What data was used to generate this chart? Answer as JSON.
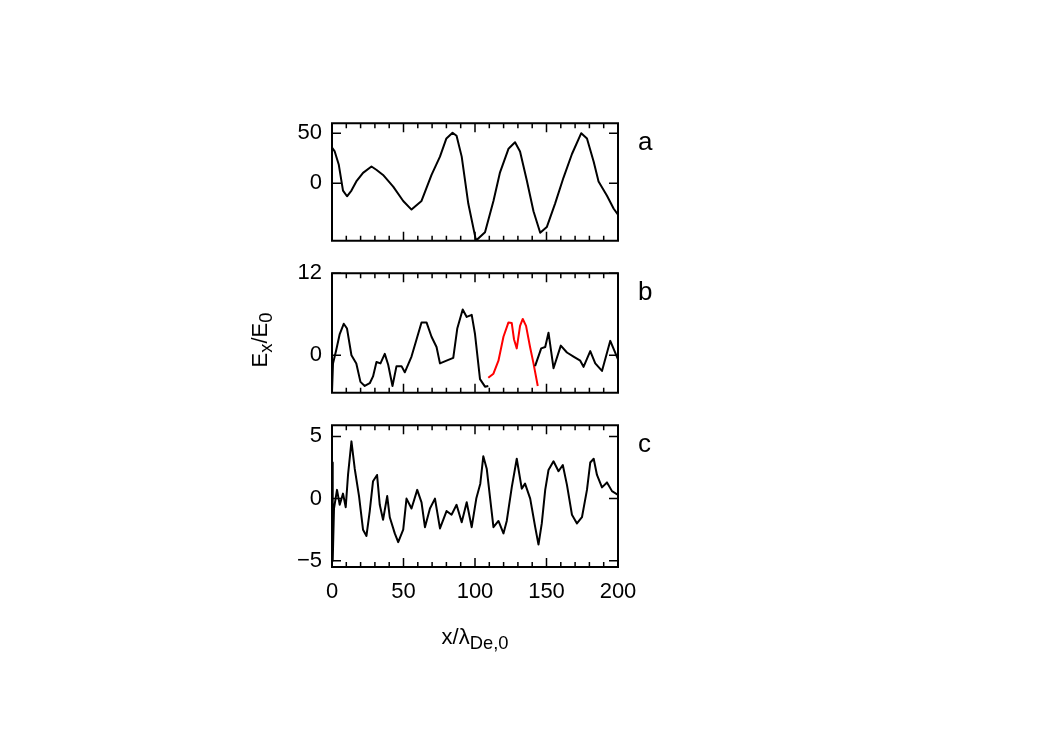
{
  "chart_data": [
    {
      "type": "line",
      "xlim": [
        0,
        200
      ],
      "xticks": [
        0,
        {
          "value": 10,
          "label": null
        },
        {
          "value": 20,
          "label": null
        },
        {
          "value": 30,
          "label": null
        },
        {
          "value": 40,
          "label": null
        },
        50,
        {
          "value": 60,
          "label": null
        },
        {
          "value": 70,
          "label": null
        },
        {
          "value": 80,
          "label": null
        },
        {
          "value": 90,
          "label": null
        },
        100,
        {
          "value": 110,
          "label": null
        },
        {
          "value": 120,
          "label": null
        },
        {
          "value": 130,
          "label": null
        },
        {
          "value": 140,
          "label": null
        },
        150,
        {
          "value": 160,
          "label": null
        },
        {
          "value": 170,
          "label": null
        },
        {
          "value": 180,
          "label": null
        },
        {
          "value": 190,
          "label": null
        },
        200
      ],
      "ylim": [
        -57.5,
        60
      ],
      "yticks": [
        0,
        50
      ],
      "tick_labels": "y",
      "marker": "none",
      "annotations": [
        "a"
      ],
      "series": [
        {
          "color": "#000000",
          "x": [
            0,
            1.9,
            4.7,
            7.7,
            10.5,
            13.6,
            17,
            21.7,
            27.6,
            31,
            35.7,
            42.8,
            49.8,
            55.6,
            62.6,
            69.6,
            75.5,
            80,
            84.3,
            87.1,
            90.7,
            95.3,
            100.7,
            107,
            112.9,
            117.5,
            123.4,
            128,
            131.5,
            136.2,
            140.9,
            145.6,
            150.2,
            156,
            161.9,
            167.8,
            174.3,
            178.3,
            183,
            186.4,
            192.3,
            197,
            200
          ],
          "values": [
            35.7,
            31.8,
            18.8,
            -7.3,
            -13,
            -7.3,
            1.8,
            10.4,
            16.7,
            13.5,
            8.3,
            -3.4,
            -17.7,
            -26.3,
            -17.7,
            8.3,
            26.6,
            44.8,
            50.5,
            47.4,
            26.6,
            -20.3,
            -57.3,
            -49,
            -17.7,
            10.9,
            34.4,
            40.9,
            31.8,
            3.1,
            -28,
            -49.5,
            -43.8,
            -20.3,
            5.7,
            29.2,
            50,
            44.8,
            21.4,
            1.8,
            -12.5,
            -25.5,
            -31.3
          ]
        }
      ]
    },
    {
      "type": "line",
      "xlim": [
        0,
        200
      ],
      "xticks": [
        0,
        {
          "value": 10,
          "label": null
        },
        {
          "value": 20,
          "label": null
        },
        {
          "value": 30,
          "label": null
        },
        {
          "value": 40,
          "label": null
        },
        50,
        {
          "value": 60,
          "label": null
        },
        {
          "value": 70,
          "label": null
        },
        {
          "value": 80,
          "label": null
        },
        {
          "value": 90,
          "label": null
        },
        100,
        {
          "value": 110,
          "label": null
        },
        {
          "value": 120,
          "label": null
        },
        {
          "value": 130,
          "label": null
        },
        {
          "value": 140,
          "label": null
        },
        150,
        {
          "value": 160,
          "label": null
        },
        {
          "value": 170,
          "label": null
        },
        {
          "value": 180,
          "label": null
        },
        {
          "value": 190,
          "label": null
        },
        200
      ],
      "ylim": [
        -5.5,
        12
      ],
      "yticks": [
        0,
        12
      ],
      "tick_labels": "y",
      "marker": "none",
      "ylabel": "E$_{x}$/E$_{0}$",
      "annotations": [
        "b"
      ],
      "series": [
        {
          "color": "#000000",
          "x": [
            0,
            0.7,
            3,
            5.4,
            8.2,
            10.5,
            13.6,
            17,
            19.9,
            22.9,
            26.4,
            28.7,
            31.1,
            33.9,
            36.9,
            39.3,
            42.3,
            45.1,
            48.6,
            50.9,
            55.6,
            59.1,
            62.6,
            66.1,
            69.6,
            73.1,
            75.5,
            80.1,
            84.8,
            87.6,
            91.4,
            94.2,
            97.7,
            100,
            103.5,
            107,
            109.3,
            125,
            142,
            146.3,
            149.1,
            151.4,
            154.9,
            160,
            164.3,
            168.9,
            173.6,
            175.9,
            180.6,
            184.1,
            188.8,
            194.6,
            200
          ],
          "values": [
            -5.4,
            -1.2,
            0.8,
            3.1,
            4.6,
            3.9,
            0,
            -1.2,
            -3.9,
            -4.5,
            -4.1,
            -3.1,
            -1,
            -1.2,
            0.2,
            -1.4,
            -4.5,
            -1.6,
            -1.6,
            -2.5,
            -0.2,
            2.3,
            4.8,
            4.8,
            2.7,
            1.2,
            -1.2,
            -0.8,
            -0.4,
            3.9,
            6.7,
            5.6,
            5.9,
            3.1,
            -3.5,
            -4.6,
            -4.5,
            null,
            -1.6,
            1,
            1.2,
            3.3,
            -1.9,
            1.4,
            0.4,
            -0.2,
            -0.8,
            -1.7,
            0.6,
            -1.2,
            -2.3,
            2.1,
            -0.6
          ]
        },
        {
          "color": "#ff0000",
          "x": [
            109.3,
            112.9,
            116.4,
            119.9,
            123.4,
            125.7,
            127.3,
            129.2,
            131.5,
            133.4,
            135.7,
            138.5,
            140.9,
            143.9
          ],
          "values": [
            -3.3,
            -2.7,
            -0.8,
            2.7,
            4.8,
            4.7,
            2.3,
            1,
            4.3,
            5.3,
            4.3,
            1.2,
            -1.2,
            -4.5
          ]
        }
      ]
    },
    {
      "type": "line",
      "xlim": [
        0,
        200
      ],
      "xticks": [
        0,
        {
          "value": 10,
          "label": null
        },
        {
          "value": 20,
          "label": null
        },
        {
          "value": 30,
          "label": null
        },
        {
          "value": 40,
          "label": null
        },
        50,
        {
          "value": 60,
          "label": null
        },
        {
          "value": 70,
          "label": null
        },
        {
          "value": 80,
          "label": null
        },
        {
          "value": 90,
          "label": null
        },
        100,
        {
          "value": 110,
          "label": null
        },
        {
          "value": 120,
          "label": null
        },
        {
          "value": 130,
          "label": null
        },
        {
          "value": 140,
          "label": null
        },
        150,
        {
          "value": 160,
          "label": null
        },
        {
          "value": 170,
          "label": null
        },
        {
          "value": 180,
          "label": null
        },
        {
          "value": 190,
          "label": null
        },
        200
      ],
      "ylim": [
        -5.5,
        5.9
      ],
      "yticks": [
        {
          "value": -5,
          "label": "−5"
        },
        0,
        5
      ],
      "marker": "none",
      "xlabel": "x/λ$_{De,0}$",
      "annotations": [
        "c"
      ],
      "series": [
        {
          "color": "#000000",
          "x": [
            0,
            0.5,
            1.4,
            3.5,
            5.4,
            7.7,
            9.6,
            11.2,
            13.6,
            15.9,
            18.9,
            21.7,
            24.1,
            26.4,
            28.7,
            31.5,
            33.4,
            35.7,
            38.6,
            40.4,
            43.9,
            46.3,
            49.8,
            52.1,
            55.6,
            59.6,
            62.6,
            65,
            68.5,
            72,
            75.5,
            80.1,
            83.6,
            87.1,
            90.7,
            94.2,
            97.7,
            100.9,
            103.7,
            105.8,
            108.2,
            112.9,
            116.4,
            119.9,
            122.2,
            125.7,
            129.2,
            132.7,
            135,
            138.6,
            142.1,
            144.4,
            146.7,
            149.1,
            151.4,
            154.9,
            158.4,
            161.4,
            164.3,
            167.8,
            171.3,
            174.8,
            178.3,
            180.6,
            183,
            185.3,
            188.8,
            192.3,
            195.8,
            200
          ],
          "values": [
            2.9,
            -5,
            -0.8,
            0.7,
            -0.5,
            0.4,
            -0.7,
            1.9,
            4.6,
            2.4,
            0.2,
            -2.5,
            -3,
            -1,
            1.4,
            1.9,
            -0.5,
            -1.7,
            0.2,
            -1.5,
            -2.8,
            -3.5,
            -2.5,
            0,
            -0.8,
            0.7,
            -0.3,
            -2.3,
            -0.8,
            0,
            -2.4,
            -1,
            -1.3,
            -0.5,
            -1.9,
            -0.3,
            -2.3,
            0,
            1.2,
            3.4,
            2.4,
            -2.3,
            -1.8,
            -2.8,
            -1.8,
            0.9,
            3.2,
            0.8,
            1.2,
            0,
            -2.3,
            -3.7,
            -2,
            0.7,
            2.3,
            3,
            2.2,
            2.7,
            1.1,
            -1.3,
            -2,
            -1.5,
            0.7,
            2.9,
            3.2,
            1.9,
            0.9,
            1.3,
            0.6,
            0.3
          ]
        }
      ]
    }
  ]
}
